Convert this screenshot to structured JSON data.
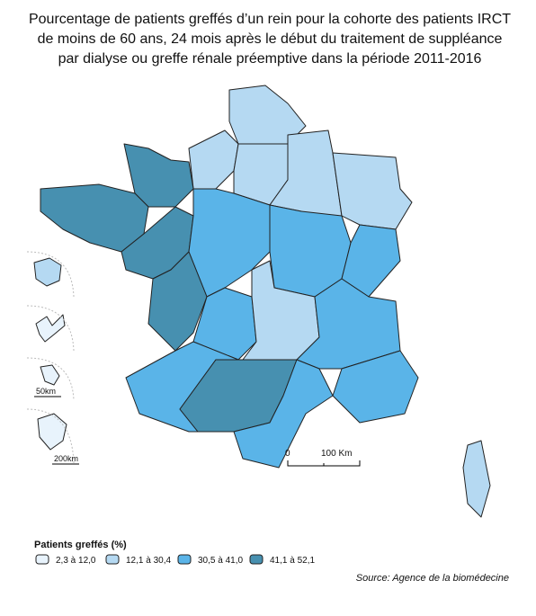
{
  "title_lines": [
    "Pourcentage de patients greffés d’un rein pour la cohorte des patients IRCT",
    "de moins de 60 ans, 24 mois après le début du traitement de suppléance",
    "par dialyse ou greffe rénale préemptive  dans la période 2011-2016"
  ],
  "legend": {
    "title": "Patients greffés (%)",
    "items": [
      {
        "label": "2,3 à 12,0",
        "color": "#e8f3fc"
      },
      {
        "label": "12,1 à 30,4",
        "color": "#b5d9f2"
      },
      {
        "label": "30,5 à 41,0",
        "color": "#5ab4e8"
      },
      {
        "label": "41,1 à 52,1",
        "color": "#4790b0"
      }
    ]
  },
  "scale": {
    "zero": "0",
    "distance": "100 Km"
  },
  "inset_scales": [
    "50km",
    "200km"
  ],
  "source": "Source: Agence de la biomédecine"
}
